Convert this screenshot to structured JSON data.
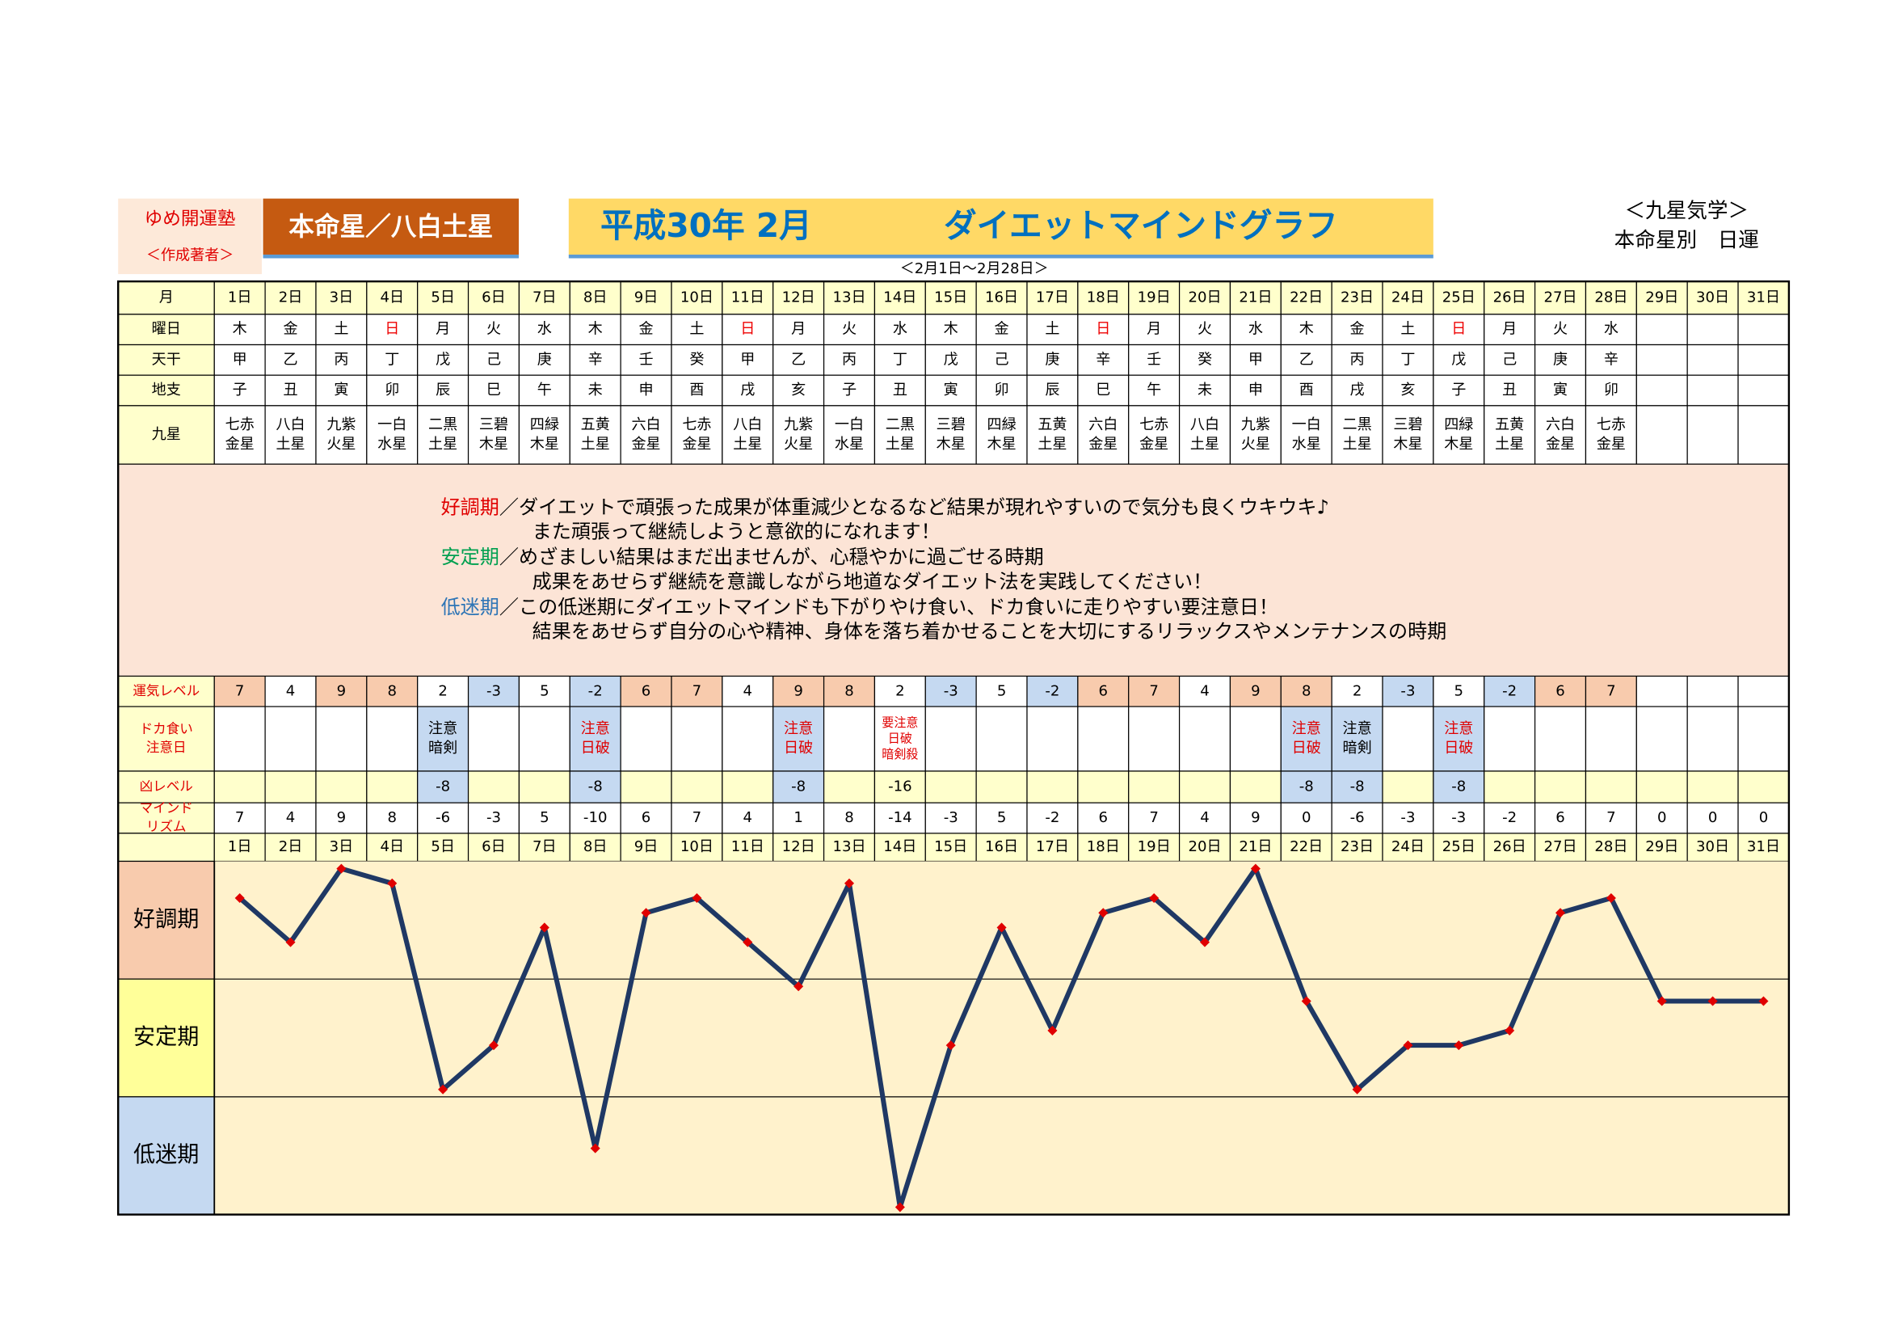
{
  "header": {
    "school": "ゆめ開運塾",
    "author": "＜作成著者＞",
    "star": "本命星／八白土星",
    "era": "平成30年 2月",
    "title": "ダイエットマインドグラフ",
    "period": "＜2月1日～2月28日＞",
    "system": "＜九星気学＞",
    "subtitle": "本命星別　日運"
  },
  "table": {
    "row_labels": {
      "month": "月",
      "weekday": "曜日",
      "stem": "天干",
      "branch": "地支",
      "star": "九星",
      "luck": "運気レベル",
      "binge": [
        "ドカ食い",
        "注意日"
      ],
      "bad": "凶レベル",
      "mind": [
        "マインド",
        "リズム"
      ]
    },
    "days": [
      "1日",
      "2日",
      "3日",
      "4日",
      "5日",
      "6日",
      "7日",
      "8日",
      "9日",
      "10日",
      "11日",
      "12日",
      "13日",
      "14日",
      "15日",
      "16日",
      "17日",
      "18日",
      "19日",
      "20日",
      "21日",
      "22日",
      "23日",
      "24日",
      "25日",
      "26日",
      "27日",
      "28日",
      "29日",
      "30日",
      "31日"
    ],
    "weekdays": [
      "木",
      "金",
      "土",
      "日",
      "月",
      "火",
      "水",
      "木",
      "金",
      "土",
      "日",
      "月",
      "火",
      "水",
      "木",
      "金",
      "土",
      "日",
      "月",
      "火",
      "水",
      "木",
      "金",
      "土",
      "日",
      "月",
      "火",
      "水"
    ],
    "weekday_colors": [
      "#000",
      "#000",
      "#000",
      "#e00",
      "#000",
      "#000",
      "#000",
      "#000",
      "#000",
      "#000",
      "#e00",
      "#000",
      "#000",
      "#000",
      "#000",
      "#000",
      "#000",
      "#e00",
      "#000",
      "#000",
      "#000",
      "#000",
      "#000",
      "#000",
      "#e00",
      "#000",
      "#000",
      "#000"
    ],
    "stems": [
      "甲",
      "乙",
      "丙",
      "丁",
      "戊",
      "己",
      "庚",
      "辛",
      "壬",
      "癸",
      "甲",
      "乙",
      "丙",
      "丁",
      "戊",
      "己",
      "庚",
      "辛",
      "壬",
      "癸",
      "甲",
      "乙",
      "丙",
      "丁",
      "戊",
      "己",
      "庚",
      "辛"
    ],
    "branches": [
      "子",
      "丑",
      "寅",
      "卯",
      "辰",
      "巳",
      "午",
      "未",
      "申",
      "酉",
      "戌",
      "亥",
      "子",
      "丑",
      "寅",
      "卯",
      "辰",
      "巳",
      "午",
      "未",
      "申",
      "酉",
      "戌",
      "亥",
      "子",
      "丑",
      "寅",
      "卯"
    ],
    "stars": [
      [
        "七赤",
        "金星"
      ],
      [
        "八白",
        "土星"
      ],
      [
        "九紫",
        "火星"
      ],
      [
        "一白",
        "水星"
      ],
      [
        "二黒",
        "土星"
      ],
      [
        "三碧",
        "木星"
      ],
      [
        "四緑",
        "木星"
      ],
      [
        "五黄",
        "土星"
      ],
      [
        "六白",
        "金星"
      ],
      [
        "七赤",
        "金星"
      ],
      [
        "八白",
        "土星"
      ],
      [
        "九紫",
        "火星"
      ],
      [
        "一白",
        "水星"
      ],
      [
        "二黒",
        "土星"
      ],
      [
        "三碧",
        "木星"
      ],
      [
        "四緑",
        "木星"
      ],
      [
        "五黄",
        "土星"
      ],
      [
        "六白",
        "金星"
      ],
      [
        "七赤",
        "金星"
      ],
      [
        "八白",
        "土星"
      ],
      [
        "九紫",
        "火星"
      ],
      [
        "一白",
        "水星"
      ],
      [
        "二黒",
        "土星"
      ],
      [
        "三碧",
        "木星"
      ],
      [
        "四緑",
        "木星"
      ],
      [
        "五黄",
        "土星"
      ],
      [
        "六白",
        "金星"
      ],
      [
        "七赤",
        "金星"
      ]
    ],
    "luck": {
      "values": [
        7,
        4,
        9,
        8,
        2,
        -3,
        5,
        -2,
        6,
        7,
        4,
        9,
        8,
        2,
        -3,
        5,
        -2,
        6,
        7,
        4,
        9,
        8,
        2,
        -3,
        5,
        -2,
        6,
        7
      ],
      "fills": [
        "#f8cbad",
        "#ffffff",
        "#f8cbad",
        "#f8cbad",
        "#ffffff",
        "#c5d9f1",
        "#ffffff",
        "#c5d9f1",
        "#f8cbad",
        "#f8cbad",
        "#ffffff",
        "#f8cbad",
        "#f8cbad",
        "#ffffff",
        "#c5d9f1",
        "#ffffff",
        "#c5d9f1",
        "#f8cbad",
        "#f8cbad",
        "#ffffff",
        "#f8cbad",
        "#f8cbad",
        "#ffffff",
        "#c5d9f1",
        "#ffffff",
        "#c5d9f1",
        "#f8cbad",
        "#f8cbad"
      ]
    },
    "binge": [
      null,
      null,
      null,
      null,
      {
        "text": [
          "注意",
          "暗剣"
        ],
        "color": "#000000",
        "fill": "#c5d9f1"
      },
      null,
      null,
      {
        "text": [
          "注意",
          "日破"
        ],
        "color": "#e00000",
        "fill": "#c5d9f1"
      },
      null,
      null,
      null,
      {
        "text": [
          "注意",
          "日破"
        ],
        "color": "#e00000",
        "fill": "#c5d9f1"
      },
      null,
      {
        "text": [
          "要注意",
          "日破",
          "暗剣殺"
        ],
        "color": "#e00000",
        "fill": "#ffffff"
      },
      null,
      null,
      null,
      null,
      null,
      null,
      null,
      {
        "text": [
          "注意",
          "日破"
        ],
        "color": "#e00000",
        "fill": "#c5d9f1"
      },
      {
        "text": [
          "注意",
          "暗剣"
        ],
        "color": "#000000",
        "fill": "#c5d9f1"
      },
      null,
      {
        "text": [
          "注意",
          "日破"
        ],
        "color": "#e00000",
        "fill": "#c5d9f1"
      },
      null,
      null,
      null,
      null,
      null,
      null
    ],
    "bad": {
      "values": [
        null,
        null,
        null,
        null,
        -8,
        null,
        null,
        -8,
        null,
        null,
        null,
        -8,
        null,
        -16,
        null,
        null,
        null,
        null,
        null,
        null,
        null,
        -8,
        -8,
        null,
        -8,
        null,
        null,
        null,
        null,
        null,
        null
      ],
      "fills": [
        "#ffffcc",
        "#ffffcc",
        "#ffffcc",
        "#ffffcc",
        "#c5d9f1",
        "#ffffcc",
        "#ffffcc",
        "#c5d9f1",
        "#ffffcc",
        "#ffffcc",
        "#ffffcc",
        "#c5d9f1",
        "#ffffcc",
        "#ffffcc",
        "#ffffcc",
        "#ffffcc",
        "#ffffcc",
        "#ffffcc",
        "#ffffcc",
        "#ffffcc",
        "#ffffcc",
        "#c5d9f1",
        "#c5d9f1",
        "#ffffcc",
        "#c5d9f1",
        "#ffffcc",
        "#ffffcc",
        "#ffffcc",
        "#ffffcc",
        "#ffffcc",
        "#ffffcc"
      ]
    },
    "mind": [
      7,
      4,
      9,
      8,
      -6,
      -3,
      5,
      -10,
      6,
      7,
      4,
      1,
      8,
      -14,
      -3,
      5,
      -2,
      6,
      7,
      4,
      9,
      0,
      -6,
      -3,
      -3,
      -2,
      6,
      7,
      0,
      0,
      0
    ]
  },
  "legend": [
    {
      "label": "好調期",
      "color": "#e00000",
      "text": "／ダイエットで頑張った成果が体重減少となるなど結果が現れやすいので気分も良くウキウキ♪",
      "more": "また頑張って継続しようと意欲的になれます！"
    },
    {
      "label": "安定期",
      "color": "#00a050",
      "text": "／めざましい結果はまだ出ませんが、心穏やかに過ごせる時期",
      "more": "成果をあせらず継続を意識しながら地道なダイエット法を実践してください！"
    },
    {
      "label": "低迷期",
      "color": "#2e75b6",
      "text": "／この低迷期にダイエットマインドも下がりやけ食い、ドカ食いに走りやすい要注意日！",
      "more": "結果をあせらず自分の心や精神、身体を落ち着かせることを大切にするリラックスやメンテナンスの時期"
    }
  ],
  "chart": {
    "type": "line",
    "ylim": [
      -14.5,
      9.5
    ],
    "line_color": "#1f3864",
    "marker_color": "#e00000",
    "zones": [
      {
        "label": "好調期",
        "fill": "#f8cbad",
        "from": 1.5,
        "to": 9.5
      },
      {
        "label": "安定期",
        "fill": "#ffff99",
        "from": -6.5,
        "to": 1.5
      },
      {
        "label": "低迷期",
        "fill": "#c5d9f1",
        "from": -14.5,
        "to": -6.5
      }
    ]
  }
}
